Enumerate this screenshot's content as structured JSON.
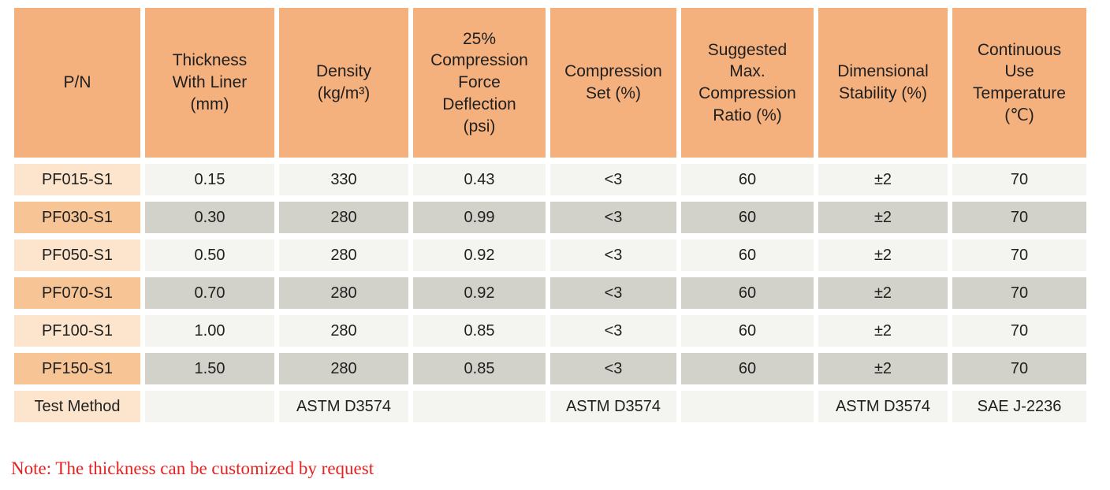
{
  "colors": {
    "header_bg": "#f4b17e",
    "pn_row_light_bg": "#fce5cc",
    "pn_row_dark_bg": "#f7c595",
    "cell_light_bg": "#f4f4f0",
    "cell_dark_bg": "#d2d2cb",
    "note_color": "#e32222",
    "text_color": "#1f1f1f"
  },
  "table": {
    "columns": [
      {
        "label": "P/N"
      },
      {
        "label": "Thickness\nWith Liner\n(mm)"
      },
      {
        "label": "Density\n(kg/m³)"
      },
      {
        "label": "25%\nCompression\nForce\nDeflection\n(psi)"
      },
      {
        "label": "Compression\nSet (%)"
      },
      {
        "label": "Suggested\nMax.\nCompression\nRatio (%)"
      },
      {
        "label": "Dimensional\nStability (%)"
      },
      {
        "label": "Continuous\nUse\nTemperature\n(℃)"
      }
    ],
    "rows": [
      {
        "pn": "PF015-S1",
        "tone": "light",
        "values": [
          "0.15",
          "330",
          "0.43",
          "<3",
          "60",
          "±2",
          "70"
        ]
      },
      {
        "pn": "PF030-S1",
        "tone": "dark",
        "values": [
          "0.30",
          "280",
          "0.99",
          "<3",
          "60",
          "±2",
          "70"
        ]
      },
      {
        "pn": "PF050-S1",
        "tone": "light",
        "values": [
          "0.50",
          "280",
          "0.92",
          "<3",
          "60",
          "±2",
          "70"
        ]
      },
      {
        "pn": "PF070-S1",
        "tone": "dark",
        "values": [
          "0.70",
          "280",
          "0.92",
          "<3",
          "60",
          "±2",
          "70"
        ]
      },
      {
        "pn": "PF100-S1",
        "tone": "light",
        "values": [
          "1.00",
          "280",
          "0.85",
          "<3",
          "60",
          "±2",
          "70"
        ]
      },
      {
        "pn": "PF150-S1",
        "tone": "dark",
        "values": [
          "1.50",
          "280",
          "0.85",
          "<3",
          "60",
          "±2",
          "70"
        ]
      },
      {
        "pn": "Test Method",
        "tone": "light",
        "values": [
          "",
          "ASTM D3574",
          "",
          "ASTM D3574",
          "",
          "ASTM D3574",
          "SAE J-2236"
        ]
      }
    ]
  },
  "note": "Note: The thickness can be customized by request"
}
